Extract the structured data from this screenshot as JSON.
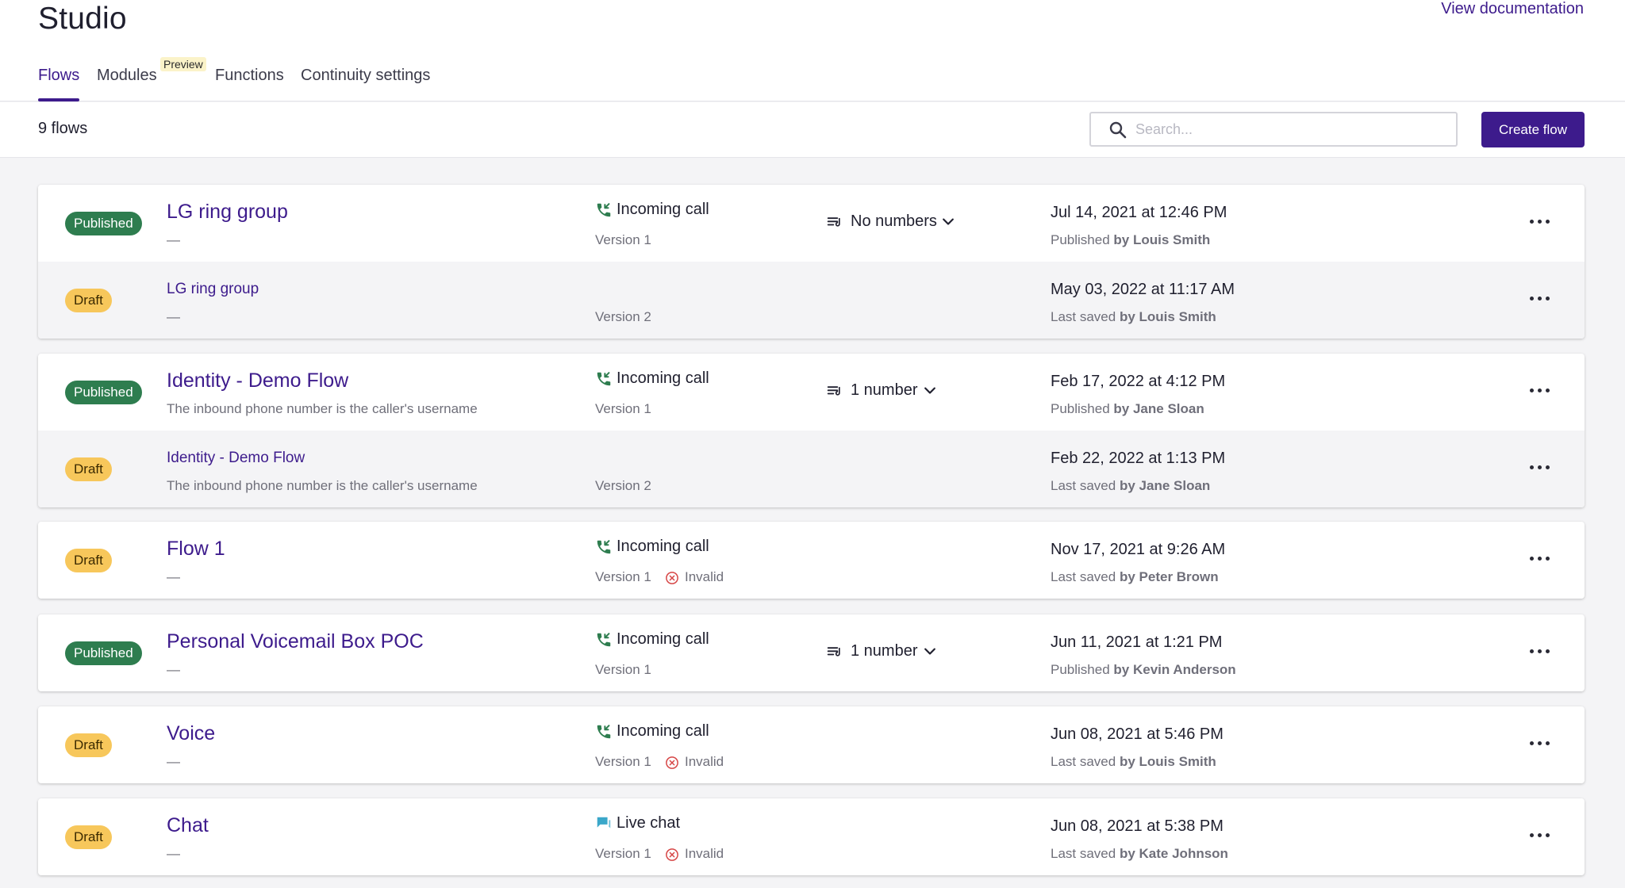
{
  "app": {
    "title": "Studio",
    "view_docs": "View documentation"
  },
  "tabs": [
    {
      "label": "Flows",
      "active": true
    },
    {
      "label": "Modules",
      "badge": "Preview"
    },
    {
      "label": "Functions"
    },
    {
      "label": "Continuity settings"
    }
  ],
  "toolbar": {
    "count": "9 flows",
    "search_placeholder": "Search...",
    "create_label": "Create flow"
  },
  "colors": {
    "accent": "#3d1b8c",
    "published": "#2e7d4f",
    "draft": "#f7c75b",
    "invalid": "#d64545",
    "trigger_icon": "#2e7d4f",
    "chat_icon": "#3aa7c9"
  },
  "cards": [
    {
      "rows": [
        {
          "status": "Published",
          "name": "LG ring group",
          "desc": "—",
          "trigger_icon": "incoming-call-icon",
          "trigger": "Incoming call",
          "version": "Version 1",
          "numbers": "No numbers",
          "date": "Jul 14, 2021 at 12:46 PM",
          "saved_prefix": "Published",
          "by_text": "by Louis Smith"
        },
        {
          "status": "Draft",
          "name": "LG ring group",
          "desc": "—",
          "version": "Version 2",
          "date": "May 03, 2022 at 11:17 AM",
          "saved_prefix": "Last saved",
          "by_text": "by Louis Smith"
        }
      ]
    },
    {
      "rows": [
        {
          "status": "Published",
          "name": "Identity - Demo Flow",
          "desc": "The inbound phone number is the caller's username",
          "trigger_icon": "incoming-call-icon",
          "trigger": "Incoming call",
          "version": "Version 1",
          "numbers": "1 number",
          "date": "Feb 17, 2022 at 4:12 PM",
          "saved_prefix": "Published",
          "by_text": "by Jane Sloan"
        },
        {
          "status": "Draft",
          "name": "Identity - Demo Flow",
          "desc": "The inbound phone number is the caller's username",
          "version": "Version 2",
          "date": "Feb 22, 2022 at 1:13 PM",
          "saved_prefix": "Last saved",
          "by_text": "by Jane Sloan"
        }
      ]
    },
    {
      "rows": [
        {
          "status": "Draft",
          "name": "Flow 1",
          "desc": "—",
          "trigger_icon": "incoming-call-icon",
          "trigger": "Incoming call",
          "version": "Version 1",
          "invalid": "Invalid",
          "date": "Nov 17, 2021 at 9:26 AM",
          "saved_prefix": "Last saved",
          "by_text": "by Peter Brown"
        }
      ]
    },
    {
      "rows": [
        {
          "status": "Published",
          "name": "Personal Voicemail Box POC",
          "desc": "—",
          "trigger_icon": "incoming-call-icon",
          "trigger": "Incoming call",
          "version": "Version 1",
          "numbers": "1 number",
          "date": "Jun 11, 2021 at 1:21 PM",
          "saved_prefix": "Published",
          "by_text": "by Kevin Anderson"
        }
      ]
    },
    {
      "rows": [
        {
          "status": "Draft",
          "name": "Voice",
          "desc": "—",
          "trigger_icon": "incoming-call-icon",
          "trigger": "Incoming call",
          "version": "Version 1",
          "invalid": "Invalid",
          "date": "Jun 08, 2021 at 5:46 PM",
          "saved_prefix": "Last saved",
          "by_text": "by Louis Smith"
        }
      ]
    },
    {
      "rows": [
        {
          "status": "Draft",
          "name": "Chat",
          "desc": "—",
          "trigger_icon": "live-chat-icon",
          "trigger": "Live chat",
          "version": "Version 1",
          "invalid": "Invalid",
          "date": "Jun 08, 2021 at 5:38 PM",
          "saved_prefix": "Last saved",
          "by_text": "by Kate Johnson"
        }
      ]
    }
  ]
}
